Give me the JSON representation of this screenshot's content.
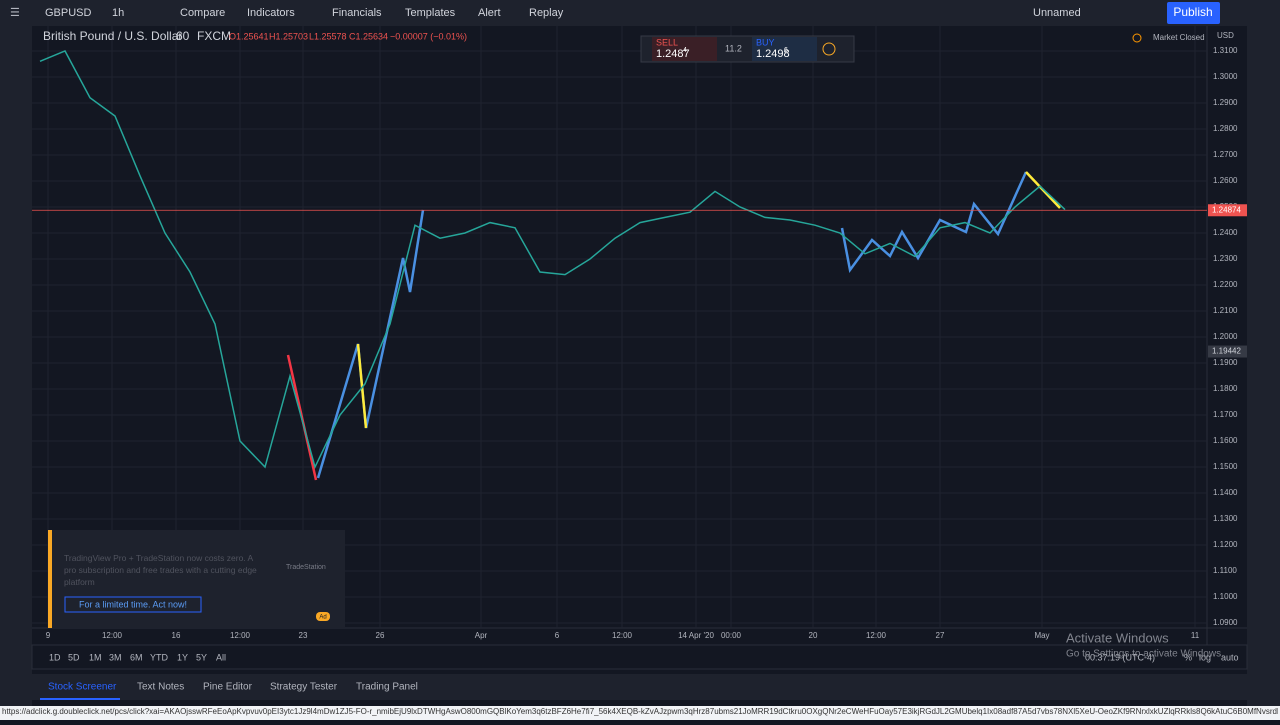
{
  "toolbar": {
    "symbol": "GBPUSD",
    "interval": "1h",
    "buttons": [
      "Compare",
      "Indicators",
      "Financials",
      "Templates",
      "Alert",
      "Replay"
    ],
    "layout": "Unnamed",
    "publish": "Publish"
  },
  "legend": {
    "title": "British Pound / U.S. Dollar",
    "interval": "60",
    "source": "FXCM",
    "ohlc": [
      "O1.25641",
      "H1.25703",
      "L1.25578",
      "C1.25634"
    ],
    "change": "−0.00007 (−0.01%)"
  },
  "trade": {
    "sell_label": "SELL",
    "sell_price": "1.2487",
    "sell_pip": "4",
    "spread": "11.2",
    "buy_label": "BUY",
    "buy_price": "1.2498",
    "buy_pip": "6"
  },
  "market_status": "Market Closed",
  "currency": "USD",
  "chart": {
    "type": "line",
    "color": "#26a69a",
    "values": [
      1.306,
      1.31,
      1.292,
      1.285,
      1.262,
      1.24,
      1.225,
      1.205,
      1.16,
      1.15,
      1.185,
      1.15,
      1.17,
      1.182,
      1.205,
      1.243,
      1.238,
      1.24,
      1.244,
      1.242,
      1.225,
      1.224,
      1.23,
      1.238,
      1.244,
      1.246,
      1.248,
      1.256,
      1.25,
      1.246,
      1.245,
      1.243,
      1.24,
      1.232,
      1.236,
      1.231,
      1.242,
      1.244,
      1.24,
      1.25,
      1.258,
      1.249
    ],
    "ylim": [
      1.0881,
      1.3196
    ],
    "yticks": [
      {
        "value": 1.31,
        "label": "1.3100"
      },
      {
        "value": 1.3,
        "label": "1.3000"
      },
      {
        "value": 1.29,
        "label": "1.2900"
      },
      {
        "value": 1.28,
        "label": "1.2800"
      },
      {
        "value": 1.27,
        "label": "1.2700"
      },
      {
        "value": 1.26,
        "label": "1.2600"
      },
      {
        "value": 1.25,
        "label": "1.2500"
      },
      {
        "value": 1.24,
        "label": "1.2400"
      },
      {
        "value": 1.23,
        "label": "1.2300"
      },
      {
        "value": 1.22,
        "label": "1.2200"
      },
      {
        "value": 1.21,
        "label": "1.2100"
      },
      {
        "value": 1.2,
        "label": "1.2000"
      },
      {
        "value": 1.19,
        "label": "1.1900"
      },
      {
        "value": 1.18,
        "label": "1.1800"
      },
      {
        "value": 1.17,
        "label": "1.1700"
      },
      {
        "value": 1.16,
        "label": "1.1600"
      },
      {
        "value": 1.15,
        "label": "1.1500"
      },
      {
        "value": 1.14,
        "label": "1.1400"
      },
      {
        "value": 1.13,
        "label": "1.1300"
      },
      {
        "value": 1.12,
        "label": "1.1200"
      },
      {
        "value": 1.11,
        "label": "1.1100"
      },
      {
        "value": 1.1,
        "label": "1.1000"
      },
      {
        "value": 1.09,
        "label": "1.0900"
      }
    ],
    "last_price": 1.24874,
    "crosshair_price": 1.19442,
    "time_labels": [
      "9",
      "12:00",
      "16",
      "12:00",
      "23",
      "26",
      "Apr",
      "6",
      "12:00",
      "14 Apr '20",
      "00:00",
      "20",
      "12:00",
      "27",
      "May",
      "11"
    ]
  },
  "ranges": [
    "1D",
    "5D",
    "1M",
    "3M",
    "6M",
    "YTD",
    "1Y",
    "5Y",
    "All"
  ],
  "clock": "00:37:19 (UTC-4)",
  "scale_options": [
    "%",
    "log",
    "auto"
  ],
  "tabs": [
    "Stock Screener",
    "Text Notes",
    "Pine Editor",
    "Strategy Tester",
    "Trading Panel"
  ],
  "ad": {
    "text": "TradingView Pro + TradeStation now costs zero. A pro subscription and free trades with a cutting edge platform",
    "button": "For a limited time. Act now!",
    "brand": "TradeStation",
    "badge": "Ad"
  },
  "watermark": {
    "title": "Activate Windows",
    "subtitle": "Go to Settings to activate Windows."
  },
  "status_url": "https://adclick.g.doubleclick.net/pcs/click?xai=AKAOjsswRFeEoApKvpvuv0pEI3ytc1Jz9l4mDw1ZJ5-FO-r_nmibEjU9lxDTWHgAswO800mGQBlKoYem3q6tzBFZ6He7fi7_56k4XEQB-kZvAJzpwm3qHrz87ubms21JoMRR19dCtkru0OXgQNr2eCWeHFuOay57E3ikjRGdJL2GMUbelq1Ix08adf87A5d7vbs78NXl5XeU-OeoZKf9RNrxlxkUZlqRRkls8Q6kAtuC6B0MfNvsrdKVe..."
}
